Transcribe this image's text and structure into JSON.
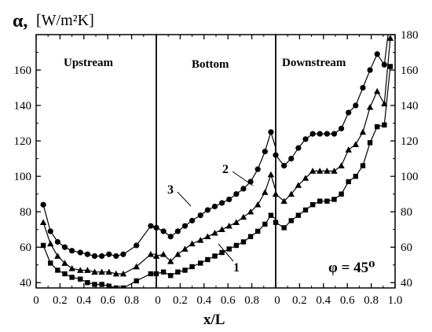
{
  "chart_data": {
    "type": "line",
    "ylabel_symbol": "α,",
    "ylabel_unit": "[W/m²K]",
    "xlabel": "x/L",
    "annotation": "φ = 45⁰",
    "y_ticks_left": [
      40,
      60,
      80,
      100,
      120,
      140,
      160
    ],
    "y_ticks_right": [
      40,
      60,
      80,
      100,
      120,
      140,
      160,
      180
    ],
    "ylim": [
      37,
      180
    ],
    "regions": [
      {
        "name": "Upstream",
        "x_ticks": [
          "0",
          "0.2",
          "0.4",
          "0.6",
          "0.8"
        ]
      },
      {
        "name": "Bottom",
        "x_ticks": [
          "0",
          "0.2",
          "0.4",
          "0.6",
          "0.8"
        ]
      },
      {
        "name": "Downstream",
        "x_ticks": [
          "0",
          "0.2",
          "0.4",
          "0.6",
          "0.8",
          "1.0"
        ]
      }
    ],
    "series": [
      {
        "name": "1",
        "marker": "square",
        "segments": [
          [
            [
              0.06,
              61
            ],
            [
              0.12,
              51
            ],
            [
              0.18,
              47
            ],
            [
              0.24,
              45
            ],
            [
              0.3,
              43
            ],
            [
              0.37,
              42
            ],
            [
              0.43,
              40
            ],
            [
              0.49,
              39
            ],
            [
              0.55,
              39
            ],
            [
              0.61,
              38
            ],
            [
              0.67,
              37
            ],
            [
              0.73,
              37
            ],
            [
              0.84,
              41
            ],
            [
              0.96,
              45
            ],
            [
              1.0,
              45
            ]
          ],
          [
            [
              0.0,
              45
            ],
            [
              0.06,
              46
            ],
            [
              0.12,
              44
            ],
            [
              0.18,
              46
            ],
            [
              0.24,
              47
            ],
            [
              0.3,
              49
            ],
            [
              0.37,
              51
            ],
            [
              0.43,
              53
            ],
            [
              0.49,
              55
            ],
            [
              0.55,
              57
            ],
            [
              0.61,
              59
            ],
            [
              0.67,
              61
            ],
            [
              0.73,
              63
            ],
            [
              0.79,
              66
            ],
            [
              0.85,
              69
            ],
            [
              0.91,
              73
            ],
            [
              0.96,
              78
            ],
            [
              1.0,
              76
            ]
          ],
          [
            [
              0.0,
              74
            ],
            [
              0.07,
              71
            ],
            [
              0.13,
              75
            ],
            [
              0.19,
              78
            ],
            [
              0.25,
              81
            ],
            [
              0.31,
              84
            ],
            [
              0.37,
              86
            ],
            [
              0.43,
              86
            ],
            [
              0.49,
              87
            ],
            [
              0.55,
              90
            ],
            [
              0.61,
              97
            ],
            [
              0.67,
              100
            ],
            [
              0.73,
              106
            ],
            [
              0.79,
              119
            ],
            [
              0.85,
              128
            ],
            [
              0.91,
              129
            ],
            [
              0.96,
              162
            ]
          ]
        ]
      },
      {
        "name": "2",
        "marker": "triangle",
        "segments": [
          [
            [
              0.06,
              74
            ],
            [
              0.12,
              62
            ],
            [
              0.18,
              55
            ],
            [
              0.24,
              51
            ],
            [
              0.3,
              48
            ],
            [
              0.37,
              47
            ],
            [
              0.43,
              47
            ],
            [
              0.49,
              46
            ],
            [
              0.55,
              46
            ],
            [
              0.61,
              46
            ],
            [
              0.67,
              45
            ],
            [
              0.73,
              45
            ],
            [
              0.84,
              49
            ],
            [
              0.96,
              56
            ],
            [
              1.0,
              56
            ]
          ],
          [
            [
              0.0,
              55
            ],
            [
              0.06,
              56
            ],
            [
              0.12,
              52
            ],
            [
              0.18,
              56
            ],
            [
              0.24,
              59
            ],
            [
              0.3,
              62
            ],
            [
              0.37,
              64
            ],
            [
              0.43,
              66
            ],
            [
              0.49,
              68
            ],
            [
              0.55,
              70
            ],
            [
              0.61,
              72
            ],
            [
              0.67,
              74
            ],
            [
              0.73,
              77
            ],
            [
              0.79,
              80
            ],
            [
              0.85,
              84
            ],
            [
              0.91,
              91
            ],
            [
              0.96,
              101
            ],
            [
              1.0,
              92
            ]
          ],
          [
            [
              0.0,
              90
            ],
            [
              0.07,
              86
            ],
            [
              0.13,
              90
            ],
            [
              0.19,
              95
            ],
            [
              0.25,
              99
            ],
            [
              0.31,
              103
            ],
            [
              0.37,
              103
            ],
            [
              0.43,
              103
            ],
            [
              0.49,
              103
            ],
            [
              0.55,
              106
            ],
            [
              0.61,
              115
            ],
            [
              0.67,
              118
            ],
            [
              0.73,
              125
            ],
            [
              0.79,
              139
            ],
            [
              0.85,
              148
            ],
            [
              0.91,
              141
            ],
            [
              0.96,
              178
            ]
          ]
        ]
      },
      {
        "name": "3",
        "marker": "circle",
        "segments": [
          [
            [
              0.06,
              84
            ],
            [
              0.12,
              69
            ],
            [
              0.18,
              63
            ],
            [
              0.24,
              60
            ],
            [
              0.3,
              58
            ],
            [
              0.37,
              57
            ],
            [
              0.43,
              56
            ],
            [
              0.49,
              55
            ],
            [
              0.55,
              55
            ],
            [
              0.61,
              56
            ],
            [
              0.67,
              55
            ],
            [
              0.73,
              56
            ],
            [
              0.84,
              61
            ],
            [
              0.96,
              72
            ],
            [
              1.0,
              71
            ]
          ],
          [
            [
              0.0,
              71
            ],
            [
              0.06,
              69
            ],
            [
              0.12,
              66
            ],
            [
              0.18,
              69
            ],
            [
              0.24,
              72
            ],
            [
              0.3,
              75
            ],
            [
              0.37,
              78
            ],
            [
              0.43,
              81
            ],
            [
              0.49,
              83
            ],
            [
              0.55,
              85
            ],
            [
              0.61,
              87
            ],
            [
              0.67,
              90
            ],
            [
              0.73,
              93
            ],
            [
              0.79,
              97
            ],
            [
              0.85,
              104
            ],
            [
              0.91,
              114
            ],
            [
              0.96,
              125
            ],
            [
              1.0,
              116
            ]
          ],
          [
            [
              0.0,
              112
            ],
            [
              0.07,
              106
            ],
            [
              0.13,
              110
            ],
            [
              0.19,
              116
            ],
            [
              0.25,
              121
            ],
            [
              0.31,
              124
            ],
            [
              0.37,
              124
            ],
            [
              0.43,
              124
            ],
            [
              0.49,
              124
            ],
            [
              0.55,
              127
            ],
            [
              0.61,
              136
            ],
            [
              0.67,
              140
            ],
            [
              0.73,
              150
            ],
            [
              0.79,
              160
            ],
            [
              0.85,
              169
            ],
            [
              0.91,
              163
            ],
            [
              0.96,
              190
            ]
          ]
        ]
      }
    ]
  }
}
